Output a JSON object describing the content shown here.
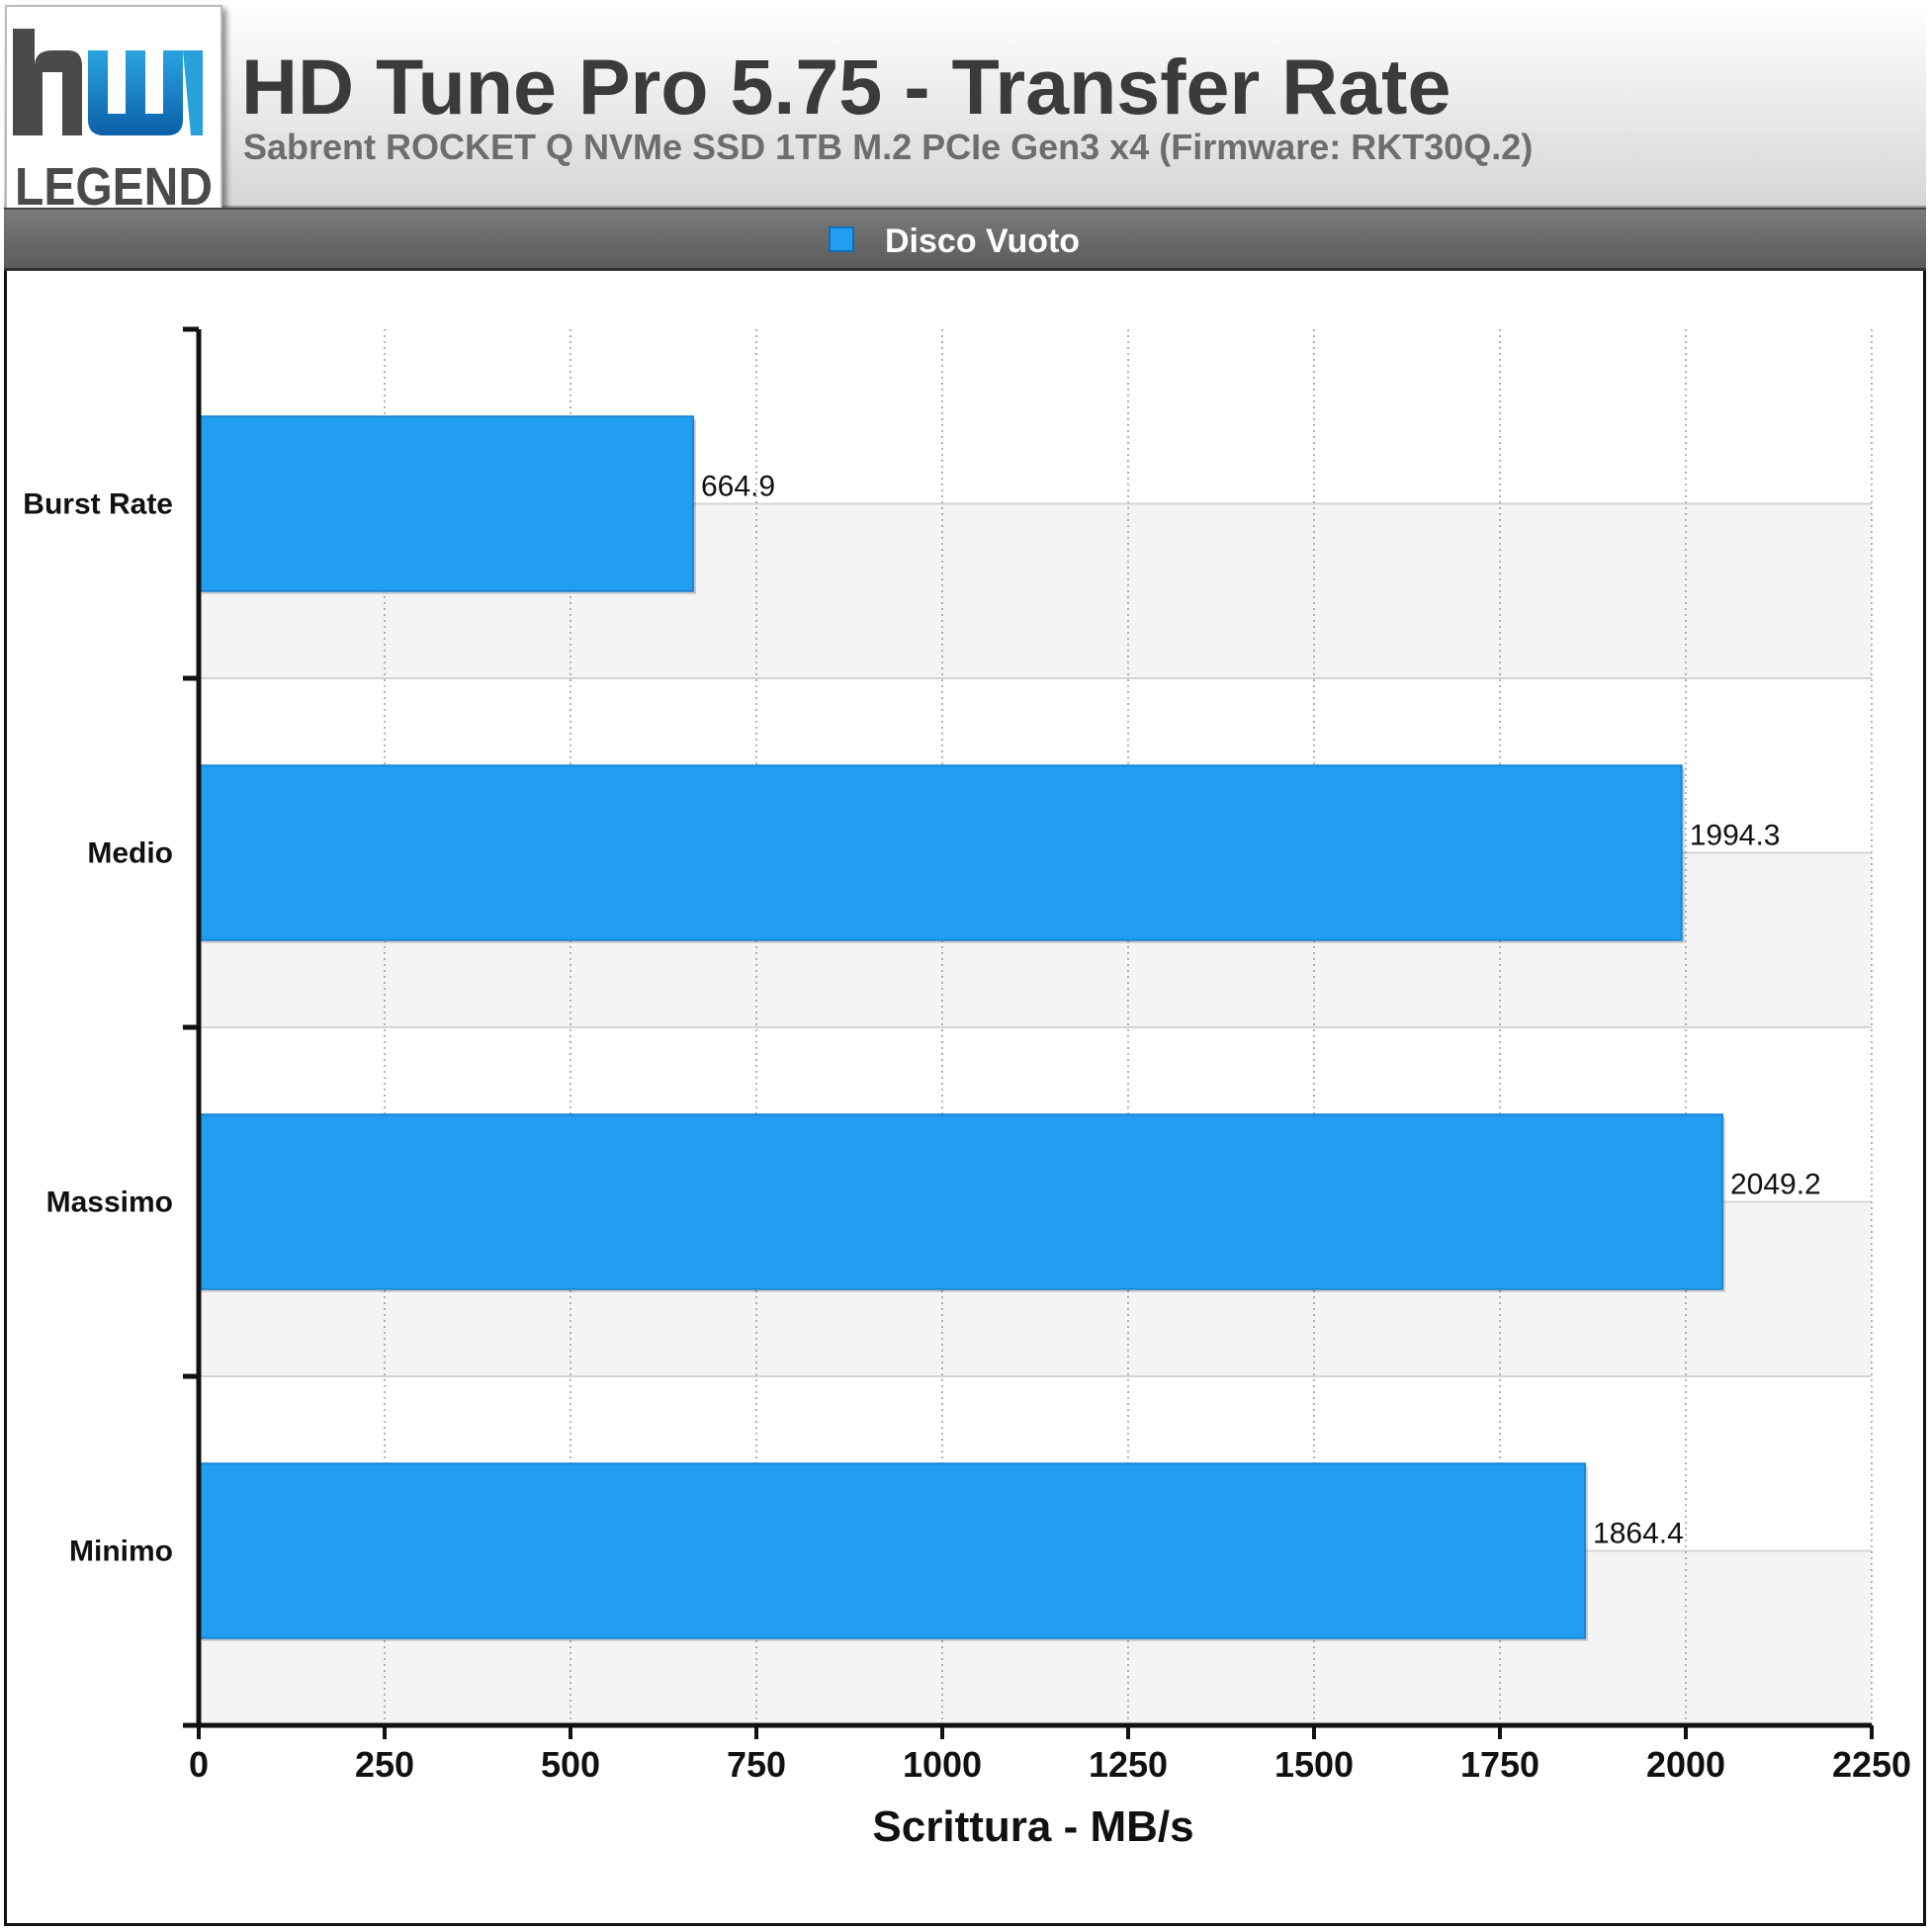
{
  "header": {
    "logo_text_top": "hw",
    "logo_text_bottom": "LEGEND",
    "title": "HD Tune Pro 5.75 - Transfer Rate",
    "subtitle": "Sabrent ROCKET Q NVMe SSD 1TB M.2 PCIe Gen3 x4 (Firmware: RKT30Q.2)"
  },
  "legend": {
    "label": "Disco Vuoto",
    "color": "#219ef0"
  },
  "chart_data": {
    "type": "bar",
    "orientation": "horizontal",
    "title": "HD Tune Pro 5.75 - Transfer Rate",
    "subtitle": "Sabrent ROCKET Q NVMe SSD 1TB M.2 PCIe Gen3 x4 (Firmware: RKT30Q.2)",
    "categories": [
      "Burst Rate",
      "Medio",
      "Massimo",
      "Minimo"
    ],
    "series": [
      {
        "name": "Disco Vuoto",
        "color": "#219ef0",
        "values": [
          664.9,
          1994.3,
          2049.2,
          1864.4
        ]
      }
    ],
    "value_labels": [
      "664.9",
      "1994.3",
      "2049.2",
      "1864.4"
    ],
    "xlabel": "Scrittura - MB/s",
    "ylabel": "",
    "xlim": [
      0,
      2250
    ],
    "xticks": [
      0,
      250,
      500,
      750,
      1000,
      1250,
      1500,
      1750,
      2000,
      2250
    ],
    "xtick_labels": [
      "0",
      "250",
      "500",
      "750",
      "1000",
      "1250",
      "1500",
      "1750",
      "2000",
      "2250"
    ],
    "grid": true,
    "legend_position": "top-center"
  }
}
